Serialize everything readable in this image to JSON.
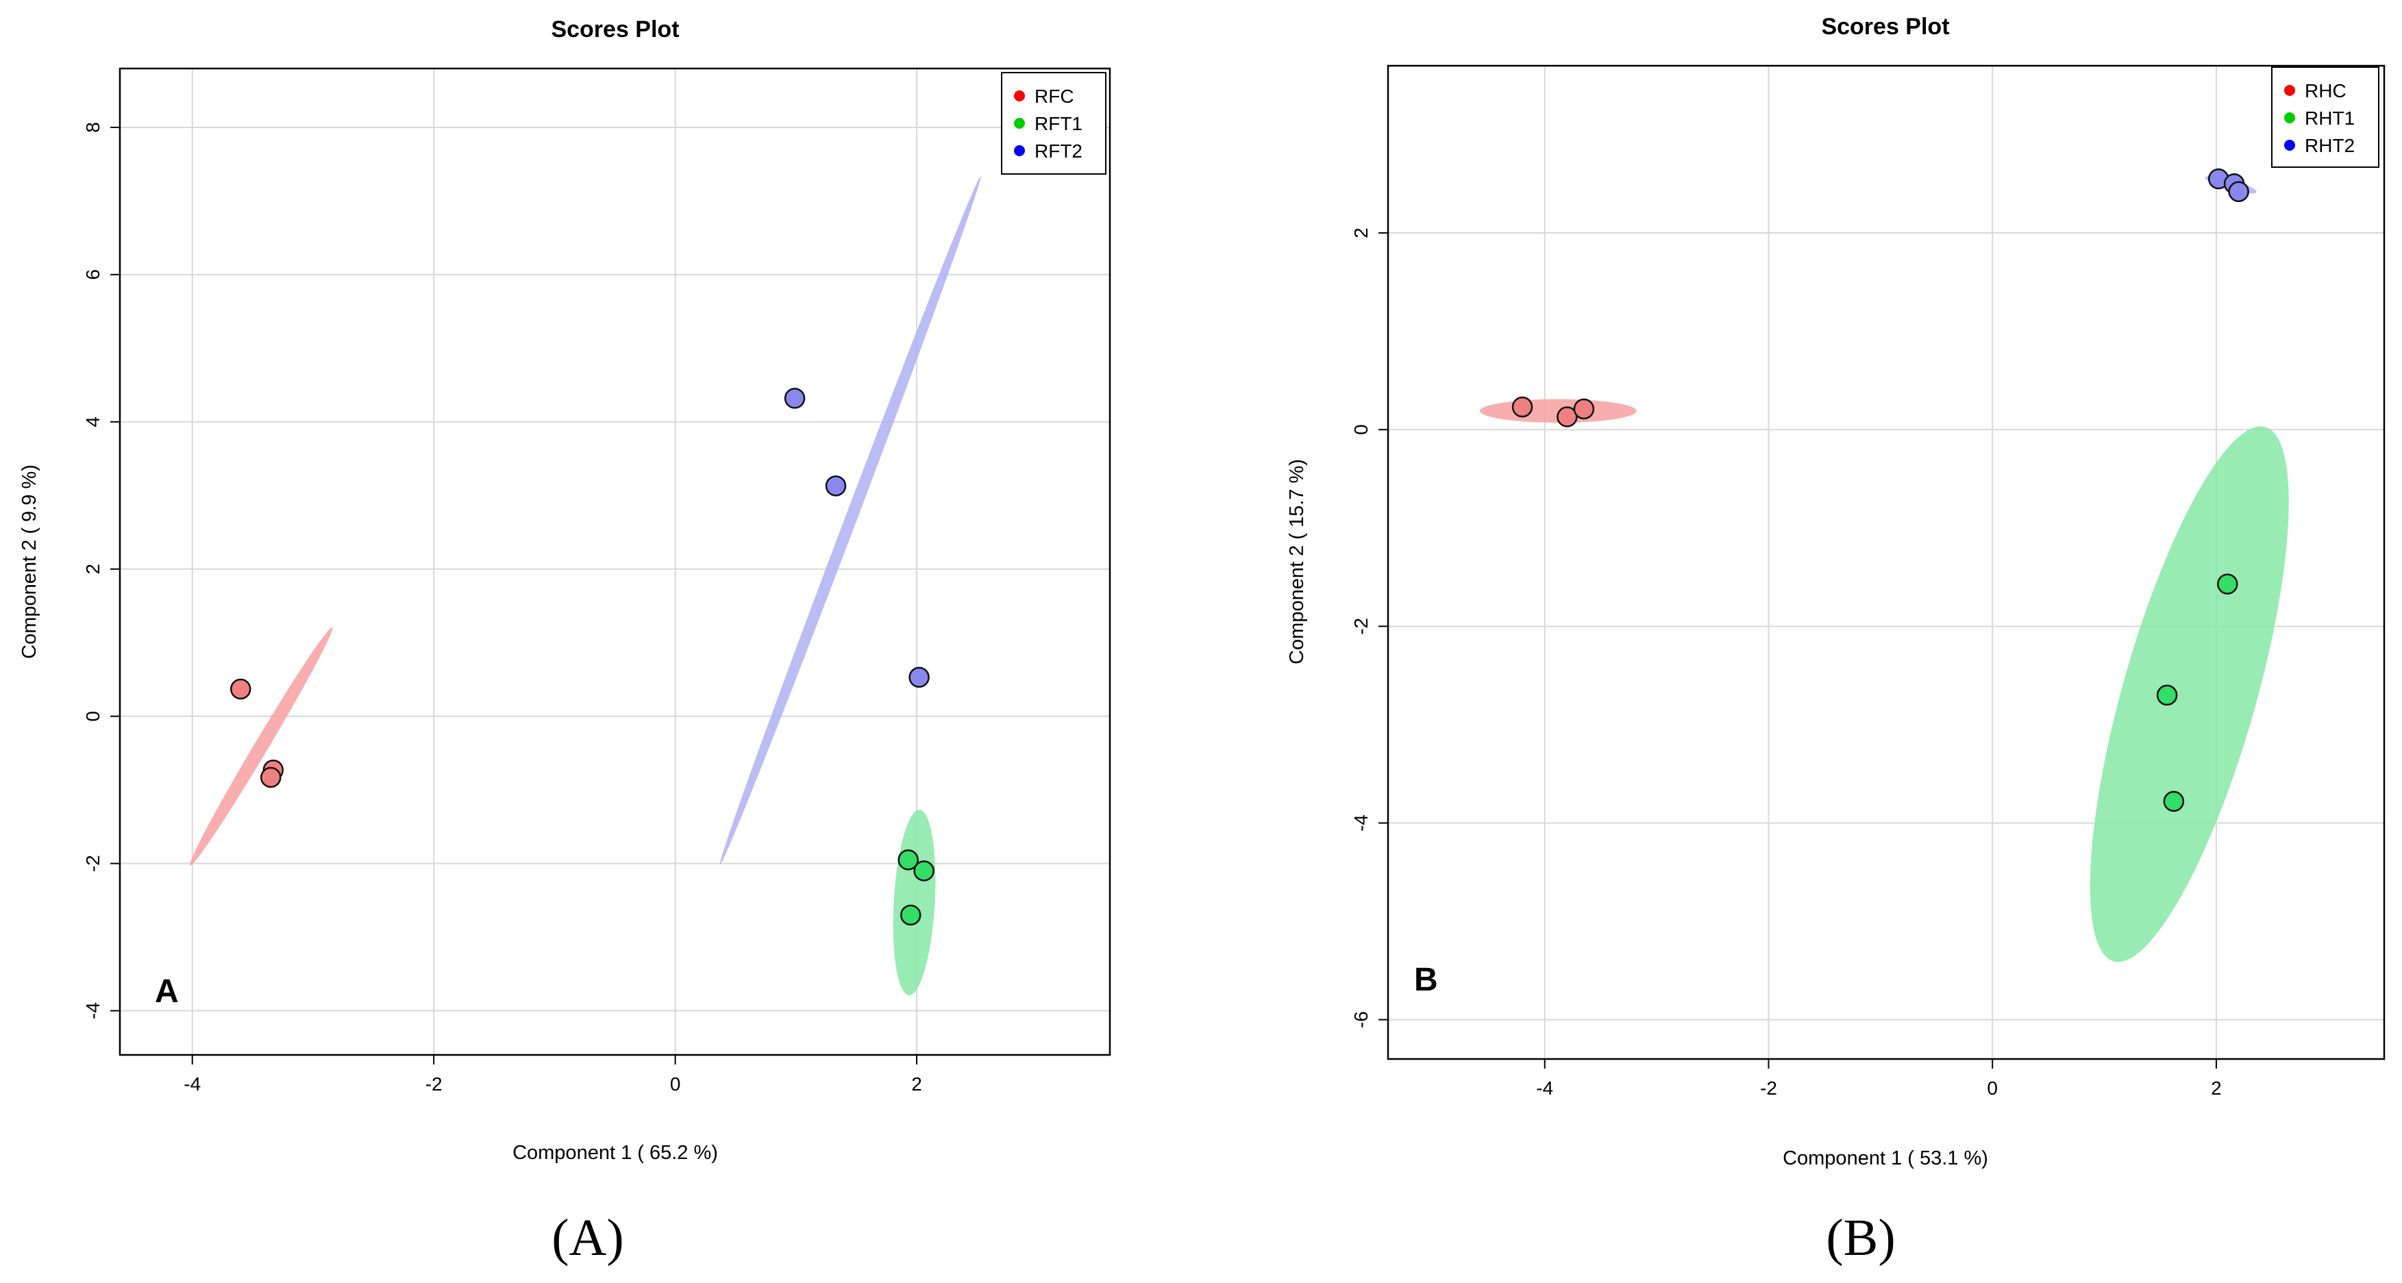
{
  "chart_data": [
    {
      "type": "scatter",
      "title": "Scores Plot",
      "xlabel": "Component 1 ( 65.2 %)",
      "ylabel": "Component 2 ( 9.9 %)",
      "xlim": [
        -4.6,
        3.6
      ],
      "ylim": [
        -4.6,
        8.8
      ],
      "xticks": [
        -4,
        -2,
        0,
        2
      ],
      "yticks": [
        -4,
        -2,
        0,
        2,
        4,
        6,
        8
      ],
      "xtick_labels": [
        "-4",
        "-2",
        "0",
        "2"
      ],
      "ytick_labels": [
        "-4",
        "-2",
        "0",
        "2",
        "4",
        "6",
        "8"
      ],
      "grid": true,
      "legend_position": "top-right",
      "panel_letter": "A",
      "caption_label": "(A)",
      "series": [
        {
          "name": "RFC",
          "color": "#ff0000",
          "point_fill": "#f08080",
          "ellipse_fill": "#f7a0a0",
          "points": [
            [
              -3.6,
              0.37
            ],
            [
              -3.33,
              -0.73
            ],
            [
              -3.35,
              -0.83
            ]
          ],
          "ellipse": {
            "center": [
              -3.43,
              -0.41
            ],
            "semi_major": 1.72,
            "semi_minor": 0.06,
            "angle_deg": 70
          }
        },
        {
          "name": "RFT1",
          "color": "#00cc00",
          "point_fill": "#33dd66",
          "ellipse_fill": "#86e8a6",
          "points": [
            [
              1.93,
              -1.95
            ],
            [
              2.06,
              -2.1
            ],
            [
              1.95,
              -2.7
            ]
          ],
          "ellipse": {
            "center": [
              1.98,
              -2.53
            ],
            "semi_major": 1.26,
            "semi_minor": 0.17,
            "angle_deg": 88
          }
        },
        {
          "name": "RFT2",
          "color": "#0000ff",
          "point_fill": "#8888ee",
          "ellipse_fill": "#b0b0f2",
          "points": [
            [
              0.99,
              4.32
            ],
            [
              1.33,
              3.13
            ],
            [
              2.02,
              0.53
            ]
          ],
          "ellipse": {
            "center": [
              1.45,
              2.66
            ],
            "semi_major": 4.8,
            "semi_minor": 0.05,
            "angle_deg": 77
          }
        }
      ]
    },
    {
      "type": "scatter",
      "title": "Scores Plot",
      "xlabel": "Component 1 ( 53.1 %)",
      "ylabel": "Component 2 ( 15.7 %)",
      "xlim": [
        -5.4,
        3.5
      ],
      "ylim": [
        -6.4,
        3.7
      ],
      "xticks": [
        -4,
        -2,
        0,
        2
      ],
      "yticks": [
        -6,
        -4,
        -2,
        0,
        2
      ],
      "xtick_labels": [
        "-4",
        "-2",
        "0",
        "2"
      ],
      "ytick_labels": [
        "-6",
        "-4",
        "-2",
        "0",
        "2"
      ],
      "grid": true,
      "legend_position": "top-right",
      "panel_letter": "B",
      "caption_label": "(B)",
      "series": [
        {
          "name": "RHC",
          "color": "#ff0000",
          "point_fill": "#f08080",
          "ellipse_fill": "#f7a0a0",
          "points": [
            [
              -4.2,
              0.23
            ],
            [
              -3.8,
              0.13
            ],
            [
              -3.65,
              0.21
            ]
          ],
          "ellipse": {
            "center": [
              -3.88,
              0.19
            ],
            "semi_major": 0.7,
            "semi_minor": 0.12,
            "angle_deg": 0
          }
        },
        {
          "name": "RHT1",
          "color": "#00cc00",
          "point_fill": "#33dd66",
          "ellipse_fill": "#86e8a6",
          "points": [
            [
              2.1,
              -1.57
            ],
            [
              1.56,
              -2.7
            ],
            [
              1.62,
              -3.78
            ]
          ],
          "ellipse": {
            "center": [
              1.76,
              -2.69
            ],
            "semi_major": 2.8,
            "semi_minor": 0.6,
            "angle_deg": 76
          }
        },
        {
          "name": "RHT2",
          "color": "#0000ff",
          "point_fill": "#8888ee",
          "ellipse_fill": "#b0b0f2",
          "points": [
            [
              2.02,
              2.55
            ],
            [
              2.16,
              2.5
            ],
            [
              2.2,
              2.42
            ]
          ],
          "ellipse": {
            "center": [
              2.13,
              2.49
            ],
            "semi_major": 0.24,
            "semi_minor": 0.05,
            "angle_deg": -18
          }
        }
      ]
    }
  ]
}
